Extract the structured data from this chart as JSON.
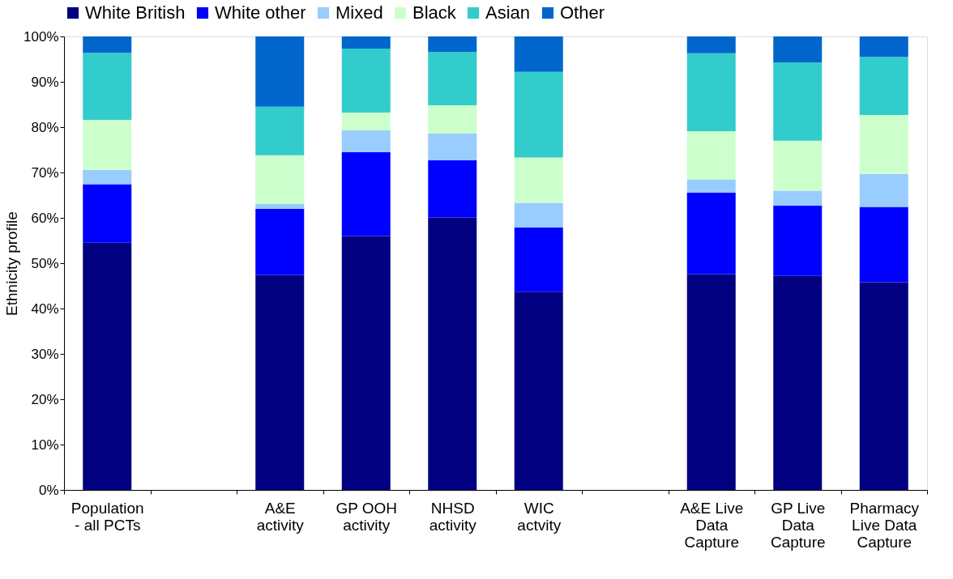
{
  "chart_data": {
    "type": "bar",
    "stacked": true,
    "ylabel": "Ethnicity profile",
    "categories": [
      "Population - all PCTs",
      null,
      "A&E activity",
      "GP OOH activity",
      "NHSD activity",
      "WIC actvity",
      null,
      "A&E Live Data Capture",
      "GP Live Data Capture",
      "Pharmacy Live Data Capture"
    ],
    "series": [
      {
        "name": "White British",
        "color": "#000080",
        "values": [
          54.5,
          null,
          47.4,
          56.0,
          60.1,
          43.7,
          null,
          47.6,
          47.2,
          45.8
        ]
      },
      {
        "name": "White other",
        "color": "#0000ff",
        "values": [
          12.9,
          null,
          14.6,
          18.5,
          12.6,
          14.2,
          null,
          18.0,
          15.5,
          16.6
        ]
      },
      {
        "name": "Mixed",
        "color": "#99ccff",
        "values": [
          3.2,
          null,
          1.1,
          4.8,
          5.9,
          5.4,
          null,
          2.8,
          3.3,
          7.3
        ]
      },
      {
        "name": "Black",
        "color": "#ccffcc",
        "values": [
          11.0,
          null,
          10.7,
          3.9,
          6.2,
          10.0,
          null,
          10.7,
          11.0,
          13.0
        ]
      },
      {
        "name": "Asian",
        "color": "#33cccc",
        "values": [
          14.8,
          null,
          10.7,
          14.1,
          11.8,
          18.9,
          null,
          17.2,
          17.3,
          12.8
        ]
      },
      {
        "name": "Other",
        "color": "#0066cc",
        "values": [
          3.6,
          null,
          15.5,
          2.7,
          3.4,
          7.8,
          null,
          3.7,
          5.7,
          4.5
        ]
      }
    ],
    "ylim": [
      0,
      100
    ],
    "yticks": [
      {
        "value": 0,
        "label": "0%"
      },
      {
        "value": 10,
        "label": "10%"
      },
      {
        "value": 20,
        "label": "20%"
      },
      {
        "value": 30,
        "label": "30%"
      },
      {
        "value": 40,
        "label": "40%"
      },
      {
        "value": 50,
        "label": "50%"
      },
      {
        "value": 60,
        "label": "60%"
      },
      {
        "value": 70,
        "label": "70%"
      },
      {
        "value": 80,
        "label": "80%"
      },
      {
        "value": 90,
        "label": "90%"
      },
      {
        "value": 100,
        "label": "100%"
      }
    ],
    "grid": false,
    "legend": "top"
  }
}
